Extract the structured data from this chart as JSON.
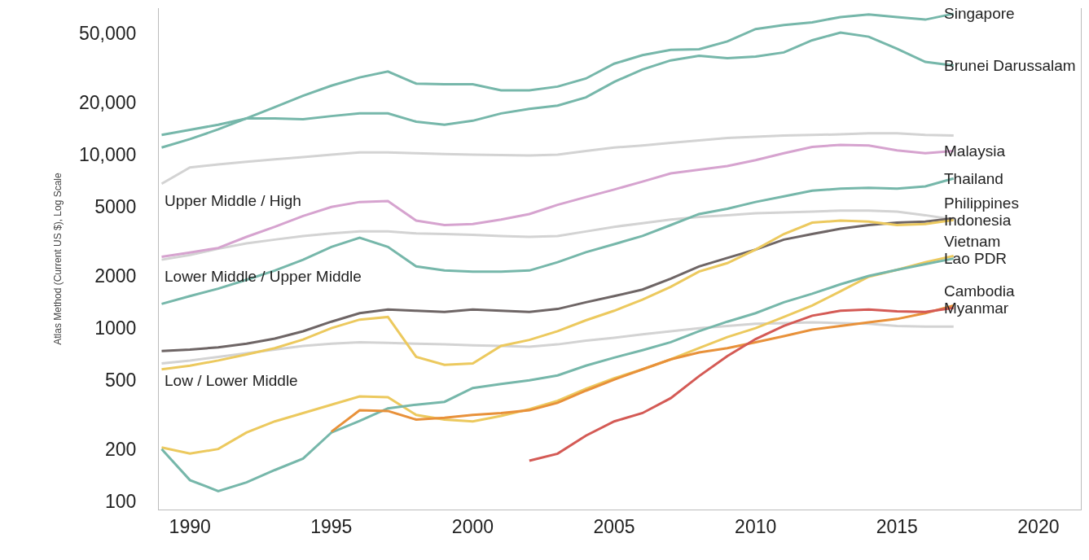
{
  "chart_data": {
    "type": "line",
    "ylabel": "Atlas Method (Current US $), Log Scale",
    "x": [
      1989,
      1990,
      1991,
      1992,
      1993,
      1994,
      1995,
      1996,
      1997,
      1998,
      1999,
      2000,
      2001,
      2002,
      2003,
      2004,
      2005,
      2006,
      2007,
      2008,
      2009,
      2010,
      2011,
      2012,
      2013,
      2014,
      2015,
      2016,
      2017
    ],
    "xlim": [
      1988.9,
      2021.5
    ],
    "xticks": [
      1990,
      1995,
      2000,
      2005,
      2010,
      2015,
      2020
    ],
    "ylim": [
      90,
      70000
    ],
    "yticks": [
      100,
      200,
      500,
      {
        "value": 1000,
        "label": "1000"
      },
      {
        "value": 2000,
        "label": "2000"
      },
      {
        "value": 5000,
        "label": "5000"
      },
      {
        "value": 10000,
        "label": "10,000"
      },
      {
        "value": 20000,
        "label": "20,000"
      },
      {
        "value": 50000,
        "label": "50,000"
      }
    ],
    "log": "y",
    "grid": false,
    "legend": false,
    "series": [
      {
        "color": "#d3d3d3",
        "values": [
          6800,
          8450,
          8800,
          9100,
          9400,
          9700,
          10000,
          10300,
          10300,
          10200,
          10100,
          10000,
          9950,
          9900,
          10000,
          10500,
          11000,
          11300,
          11700,
          12100,
          12500,
          12700,
          12900,
          13000,
          13100,
          13300,
          13300,
          13000,
          12900
        ]
      },
      {
        "color": "#d3d3d3",
        "values": [
          2480,
          2640,
          2870,
          3080,
          3240,
          3400,
          3520,
          3610,
          3610,
          3520,
          3490,
          3450,
          3400,
          3360,
          3400,
          3610,
          3840,
          4030,
          4230,
          4380,
          4480,
          4600,
          4650,
          4700,
          4760,
          4760,
          4700,
          4480,
          4230
        ]
      },
      {
        "color": "#d3d3d3",
        "values": [
          626,
          651,
          683,
          717,
          753,
          790,
          814,
          830,
          822,
          814,
          806,
          797,
          790,
          782,
          806,
          847,
          880,
          922,
          960,
          1000,
          1030,
          1060,
          1070,
          1080,
          1070,
          1060,
          1030,
          1020,
          1020
        ]
      },
      {
        "name": "Singapore",
        "color": "#76b7aa",
        "values": [
          11000,
          12300,
          14000,
          16200,
          18800,
          21900,
          25000,
          27900,
          30200,
          25700,
          25500,
          25500,
          23500,
          23500,
          24700,
          27500,
          33500,
          37500,
          40200,
          40600,
          45000,
          53000,
          56000,
          58000,
          62200,
          64400,
          62200,
          60100,
          65000
        ]
      },
      {
        "name": "Brunei Darussalam",
        "color": "#76b7aa",
        "values": [
          13000,
          13900,
          14900,
          16200,
          16200,
          16000,
          16700,
          17300,
          17300,
          15500,
          14900,
          15700,
          17300,
          18400,
          19200,
          21400,
          26300,
          31000,
          35000,
          37200,
          36000,
          36800,
          38900,
          45700,
          50600,
          47900,
          40800,
          34300,
          32700
        ]
      },
      {
        "name": "Malaysia",
        "color": "#d6a3cf",
        "values": [
          2580,
          2730,
          2900,
          3360,
          3840,
          4430,
          5000,
          5340,
          5400,
          4170,
          3930,
          3980,
          4230,
          4550,
          5140,
          5700,
          6300,
          7000,
          7800,
          8200,
          8600,
          9300,
          10200,
          11100,
          11400,
          11300,
          10600,
          10200,
          10500
        ]
      },
      {
        "name": "Thailand",
        "color": "#76b7aa",
        "values": [
          1380,
          1530,
          1690,
          1900,
          2150,
          2480,
          2940,
          3320,
          2940,
          2270,
          2150,
          2120,
          2120,
          2150,
          2400,
          2740,
          3050,
          3400,
          3930,
          4550,
          4880,
          5340,
          5750,
          6200,
          6380,
          6440,
          6380,
          6570,
          7300
        ]
      },
      {
        "name": "Philippines",
        "color": "#6e6565",
        "values": [
          738,
          752,
          775,
          814,
          870,
          960,
          1090,
          1220,
          1280,
          1260,
          1240,
          1280,
          1260,
          1240,
          1290,
          1410,
          1530,
          1670,
          1930,
          2270,
          2540,
          2840,
          3240,
          3490,
          3740,
          3930,
          4060,
          4120,
          4300
        ]
      },
      {
        "name": "Indonesia",
        "color": "#ecc95e",
        "values": [
          579,
          608,
          651,
          705,
          767,
          860,
          1000,
          1120,
          1160,
          683,
          614,
          626,
          790,
          855,
          960,
          1110,
          1260,
          1460,
          1730,
          2120,
          2370,
          2840,
          3490,
          4060,
          4170,
          4120,
          3930,
          3980,
          4200
        ]
      },
      {
        "name": "Vietnam",
        "color": "#ecc95e",
        "values": [
          205,
          189,
          201,
          250,
          290,
          324,
          362,
          404,
          400,
          316,
          297,
          290,
          312,
          341,
          381,
          447,
          515,
          579,
          661,
          767,
          888,
          1000,
          1160,
          1350,
          1630,
          1980,
          2170,
          2400,
          2610
        ]
      },
      {
        "name": "Lao PDR",
        "color": "#76b7aa",
        "values": [
          201,
          133,
          115,
          129,
          152,
          177,
          250,
          292,
          345,
          362,
          376,
          452,
          476,
          500,
          534,
          608,
          676,
          746,
          830,
          960,
          1090,
          1220,
          1410,
          1580,
          1790,
          2000,
          2170,
          2340,
          2520
        ]
      },
      {
        "name": "Cambodia",
        "color": "#e8913a",
        "values": [
          null,
          null,
          null,
          null,
          null,
          null,
          253,
          336,
          333,
          297,
          304,
          316,
          324,
          336,
          371,
          436,
          505,
          579,
          661,
          724,
          767,
          830,
          899,
          980,
          1030,
          1080,
          1130,
          1220,
          1350
        ]
      },
      {
        "name": "Myanmar",
        "color": "#d45a55",
        "values": [
          null,
          null,
          null,
          null,
          null,
          null,
          null,
          null,
          null,
          null,
          null,
          null,
          null,
          172,
          189,
          240,
          290,
          324,
          395,
          529,
          690,
          865,
          1030,
          1180,
          1260,
          1280,
          1250,
          1240,
          1310
        ]
      }
    ],
    "annotations": [
      "Upper Middle / High",
      "Lower Middle / Upper Middle",
      "Low / Lower Middle"
    ]
  }
}
